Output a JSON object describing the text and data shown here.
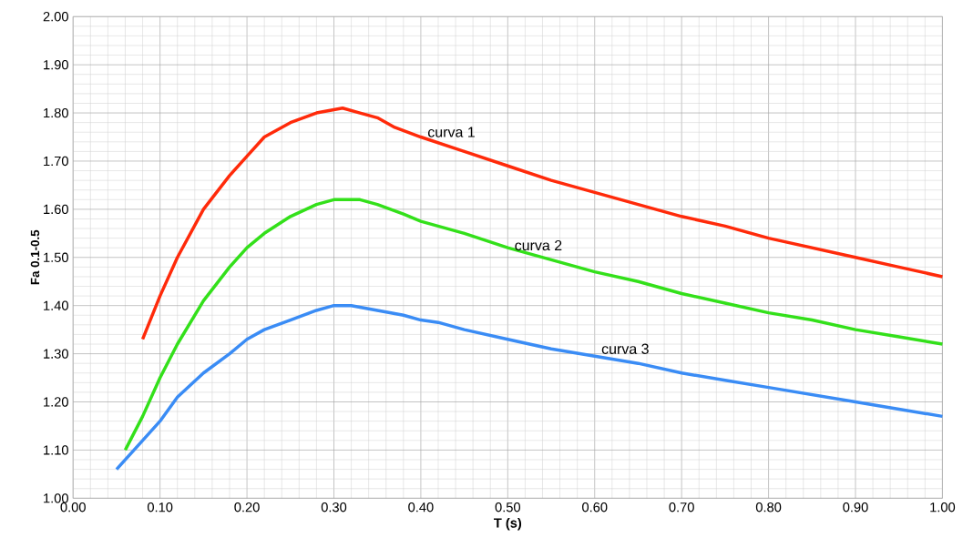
{
  "chart_data": {
    "type": "line",
    "xlabel": "T (s)",
    "ylabel": "Fa 0.1-0.5",
    "xlim": [
      0,
      1
    ],
    "ylim": [
      1,
      2
    ],
    "xticks": [
      {
        "value": 0,
        "label": "0.00"
      },
      {
        "value": 0.1,
        "label": "0.10"
      },
      {
        "value": 0.2,
        "label": "0.20"
      },
      {
        "value": 0.3,
        "label": "0.30"
      },
      {
        "value": 0.4,
        "label": "0.40"
      },
      {
        "value": 0.5,
        "label": "0.50"
      },
      {
        "value": 0.6,
        "label": "0.60"
      },
      {
        "value": 0.7,
        "label": "0.70"
      },
      {
        "value": 0.8,
        "label": "0.80"
      },
      {
        "value": 0.9,
        "label": "0.90"
      },
      {
        "value": 1,
        "label": "1.00"
      }
    ],
    "yticks": [
      {
        "value": 1,
        "label": "1.00"
      },
      {
        "value": 1.1,
        "label": "1.10"
      },
      {
        "value": 1.2,
        "label": "1.20"
      },
      {
        "value": 1.3,
        "label": "1.30"
      },
      {
        "value": 1.4,
        "label": "1.40"
      },
      {
        "value": 1.5,
        "label": "1.50"
      },
      {
        "value": 1.6,
        "label": "1.60"
      },
      {
        "value": 1.7,
        "label": "1.70"
      },
      {
        "value": 1.8,
        "label": "1.80"
      },
      {
        "value": 1.9,
        "label": "1.90"
      },
      {
        "value": 2,
        "label": "2.00"
      }
    ],
    "grid": true,
    "marker": "none",
    "line_style": "solid",
    "series": [
      {
        "name": "curva 1",
        "color": "#ff2a0a",
        "x": [
          0.08,
          0.1,
          0.12,
          0.15,
          0.18,
          0.2,
          0.22,
          0.25,
          0.28,
          0.31,
          0.33,
          0.35,
          0.37,
          0.4,
          0.45,
          0.5,
          0.55,
          0.6,
          0.65,
          0.7,
          0.75,
          0.8,
          0.85,
          0.9,
          0.95,
          1.0
        ],
        "values": [
          1.33,
          1.42,
          1.5,
          1.6,
          1.67,
          1.71,
          1.75,
          1.78,
          1.8,
          1.81,
          1.8,
          1.79,
          1.77,
          1.75,
          1.72,
          1.69,
          1.66,
          1.635,
          1.61,
          1.585,
          1.565,
          1.54,
          1.52,
          1.5,
          1.48,
          1.46
        ]
      },
      {
        "name": "curva 2",
        "color": "#33e01a",
        "x": [
          0.06,
          0.08,
          0.1,
          0.12,
          0.15,
          0.18,
          0.2,
          0.22,
          0.25,
          0.28,
          0.3,
          0.33,
          0.35,
          0.38,
          0.4,
          0.45,
          0.5,
          0.55,
          0.6,
          0.65,
          0.7,
          0.75,
          0.8,
          0.85,
          0.9,
          0.95,
          1.0
        ],
        "values": [
          1.1,
          1.17,
          1.25,
          1.32,
          1.41,
          1.48,
          1.52,
          1.55,
          1.585,
          1.61,
          1.62,
          1.62,
          1.61,
          1.59,
          1.575,
          1.55,
          1.52,
          1.495,
          1.47,
          1.45,
          1.425,
          1.405,
          1.385,
          1.37,
          1.35,
          1.335,
          1.32
        ]
      },
      {
        "name": "curva 3",
        "color": "#3a8cf5",
        "x": [
          0.05,
          0.08,
          0.1,
          0.12,
          0.15,
          0.18,
          0.2,
          0.22,
          0.25,
          0.28,
          0.3,
          0.32,
          0.35,
          0.38,
          0.4,
          0.42,
          0.45,
          0.5,
          0.55,
          0.6,
          0.65,
          0.7,
          0.75,
          0.8,
          0.85,
          0.9,
          0.95,
          1.0
        ],
        "values": [
          1.06,
          1.12,
          1.16,
          1.21,
          1.26,
          1.3,
          1.33,
          1.35,
          1.37,
          1.39,
          1.4,
          1.4,
          1.39,
          1.38,
          1.37,
          1.365,
          1.35,
          1.33,
          1.31,
          1.295,
          1.28,
          1.26,
          1.245,
          1.23,
          1.215,
          1.2,
          1.185,
          1.17
        ]
      }
    ]
  }
}
